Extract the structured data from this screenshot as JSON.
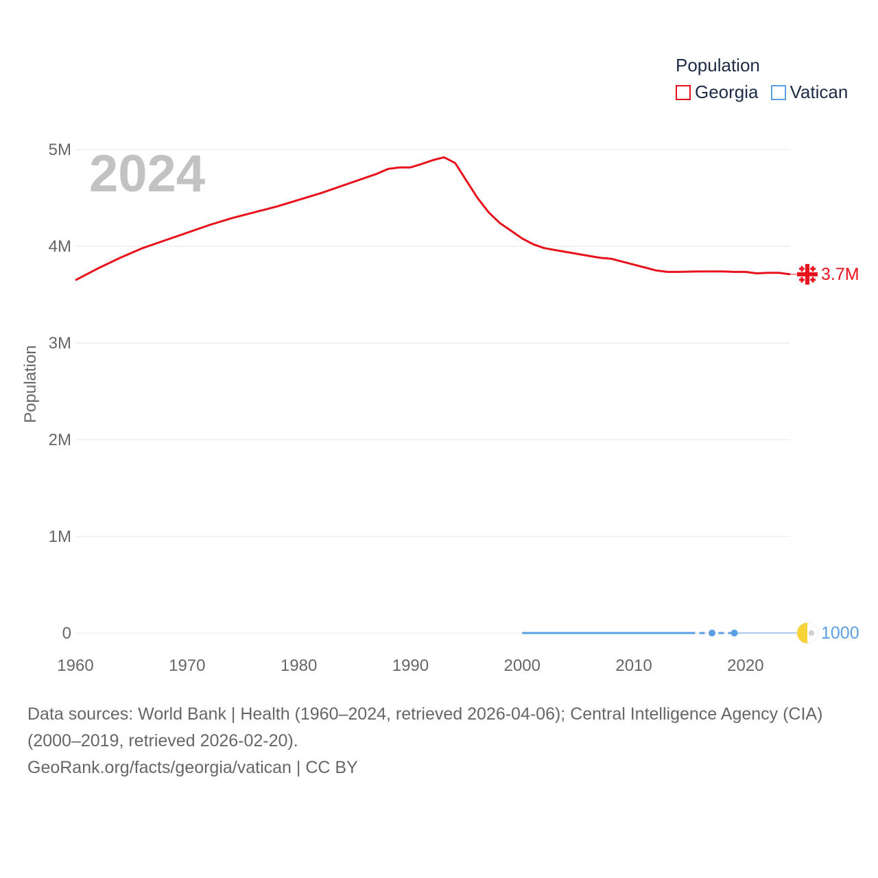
{
  "legend": {
    "title": "Population",
    "items": [
      {
        "name": "Georgia",
        "color": "#e8121c"
      },
      {
        "name": "Vatican",
        "color": "#5a9ee4"
      }
    ]
  },
  "year_label": "2024",
  "footer": {
    "sources": "Data sources: World Bank | Health (1960–2024, retrieved 2026-04-06); Central Intelligence Agency (CIA) (2000–2019, retrieved 2026-02-20).",
    "attribution_link": "GeoRank.org/facts/georgia/vatican",
    "license": " | CC BY"
  },
  "chart_data": {
    "type": "line",
    "title": "Population",
    "xlabel": "",
    "ylabel": "Population",
    "xlim": [
      1960,
      2024
    ],
    "ylim": [
      0,
      5000000
    ],
    "x_ticks": [
      1960,
      1970,
      1980,
      1990,
      2000,
      2010,
      2020
    ],
    "y_ticks": [
      {
        "value": 0,
        "label": "0"
      },
      {
        "value": 1000000,
        "label": "1M"
      },
      {
        "value": 2000000,
        "label": "2M"
      },
      {
        "value": 3000000,
        "label": "3M"
      },
      {
        "value": 4000000,
        "label": "4M"
      },
      {
        "value": 5000000,
        "label": "5M"
      }
    ],
    "grid": true,
    "series": [
      {
        "name": "Georgia",
        "color": "#e8121c",
        "end_label": "3.7M",
        "flag_icon": "georgia-flag-icon",
        "x": [
          1960,
          1962,
          1964,
          1966,
          1968,
          1970,
          1972,
          1974,
          1976,
          1978,
          1980,
          1982,
          1984,
          1986,
          1987,
          1988,
          1989,
          1990,
          1991,
          1992,
          1993,
          1994,
          1995,
          1996,
          1997,
          1998,
          1999,
          2000,
          2001,
          2002,
          2004,
          2006,
          2007,
          2008,
          2009,
          2010,
          2011,
          2012,
          2013,
          2014,
          2016,
          2018,
          2019,
          2020,
          2021,
          2022,
          2023,
          2024
        ],
        "values": [
          3650000,
          3770000,
          3880000,
          3980000,
          4060000,
          4140000,
          4220000,
          4290000,
          4350000,
          4410000,
          4480000,
          4550000,
          4630000,
          4710000,
          4750000,
          4800000,
          4815000,
          4815000,
          4850000,
          4890000,
          4920000,
          4860000,
          4680000,
          4500000,
          4350000,
          4240000,
          4160000,
          4080000,
          4020000,
          3980000,
          3940000,
          3900000,
          3880000,
          3870000,
          3840000,
          3810000,
          3780000,
          3750000,
          3735000,
          3735000,
          3740000,
          3740000,
          3735000,
          3735000,
          3720000,
          3725000,
          3725000,
          3710000
        ]
      },
      {
        "name": "Vatican",
        "color": "#5a9ee4",
        "end_label": "1000",
        "flag_icon": "vatican-flag-icon",
        "x": [
          2000,
          2005,
          2010,
          2015,
          2017,
          2019
        ],
        "values": [
          890,
          900,
          900,
          840,
          1000,
          1000
        ],
        "markers_x": [
          2017,
          2019
        ]
      }
    ]
  }
}
